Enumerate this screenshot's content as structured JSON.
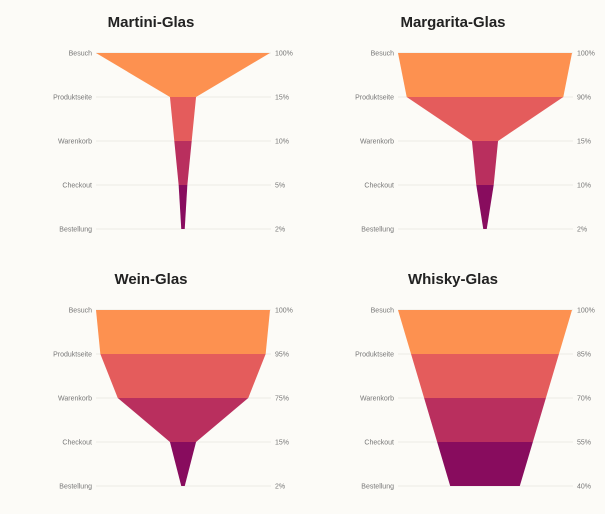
{
  "colors": [
    "#fd9150",
    "#e45c5c",
    "#b92f5e",
    "#880c5e"
  ],
  "chart_data": [
    {
      "type": "funnel",
      "title": "Martini-Glas",
      "categories": [
        "Besuch",
        "Produktseite",
        "Warenkorb",
        "Checkout",
        "Bestellung"
      ],
      "values": [
        100,
        15,
        10,
        5,
        2
      ],
      "value_labels": [
        "100%",
        "15%",
        "10%",
        "5%",
        "2%"
      ]
    },
    {
      "type": "funnel",
      "title": "Margarita-Glas",
      "categories": [
        "Besuch",
        "Produktseite",
        "Warenkorb",
        "Checkout",
        "Bestellung"
      ],
      "values": [
        100,
        90,
        15,
        10,
        2
      ],
      "value_labels": [
        "100%",
        "90%",
        "15%",
        "10%",
        "2%"
      ]
    },
    {
      "type": "funnel",
      "title": "Wein-Glas",
      "categories": [
        "Besuch",
        "Produktseite",
        "Warenkorb",
        "Checkout",
        "Bestellung"
      ],
      "values": [
        100,
        95,
        75,
        15,
        2
      ],
      "value_labels": [
        "100%",
        "95%",
        "75%",
        "15%",
        "2%"
      ]
    },
    {
      "type": "funnel",
      "title": "Whisky-Glas",
      "categories": [
        "Besuch",
        "Produktseite",
        "Warenkorb",
        "Checkout",
        "Bestellung"
      ],
      "values": [
        100,
        85,
        70,
        55,
        40
      ],
      "value_labels": [
        "100%",
        "85%",
        "70%",
        "55%",
        "40%"
      ]
    }
  ]
}
